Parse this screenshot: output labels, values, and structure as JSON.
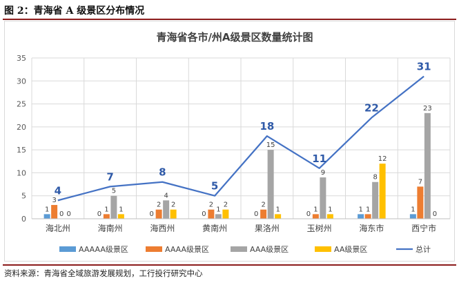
{
  "figure": {
    "title": "图 2：青海省 A 级景区分布情况",
    "source": "资料来源：青海省全域旅游发展规划，工行投行研究中心"
  },
  "chart_data": {
    "type": "bar",
    "title": "青海省各市/州A级景区数量统计图",
    "xlabel": "",
    "ylabel": "",
    "ylim": [
      0,
      35
    ],
    "yticks": [
      0,
      5,
      10,
      15,
      20,
      25,
      30,
      35
    ],
    "grid": true,
    "legend_position": "bottom",
    "categories": [
      "海北州",
      "海南州",
      "海西州",
      "黄南州",
      "果洛州",
      "玉树州",
      "海东市",
      "西宁市"
    ],
    "series": [
      {
        "name": "AAAAA级景区",
        "type": "bar",
        "color": "#5b9bd5",
        "values": [
          1,
          0,
          0,
          0,
          0,
          0,
          1,
          1
        ]
      },
      {
        "name": "AAAA级景区",
        "type": "bar",
        "color": "#ed7d31",
        "values": [
          3,
          1,
          2,
          2,
          2,
          1,
          1,
          7
        ]
      },
      {
        "name": "AAA级景区",
        "type": "bar",
        "color": "#a5a5a5",
        "values": [
          0,
          5,
          4,
          1,
          15,
          9,
          8,
          23
        ]
      },
      {
        "name": "AA级景区",
        "type": "bar",
        "color": "#ffc000",
        "values": [
          0,
          1,
          2,
          2,
          1,
          1,
          12,
          0
        ]
      },
      {
        "name": "总计",
        "type": "line",
        "color": "#4472c4",
        "values": [
          4,
          7,
          8,
          5,
          18,
          11,
          22,
          31
        ]
      }
    ]
  }
}
